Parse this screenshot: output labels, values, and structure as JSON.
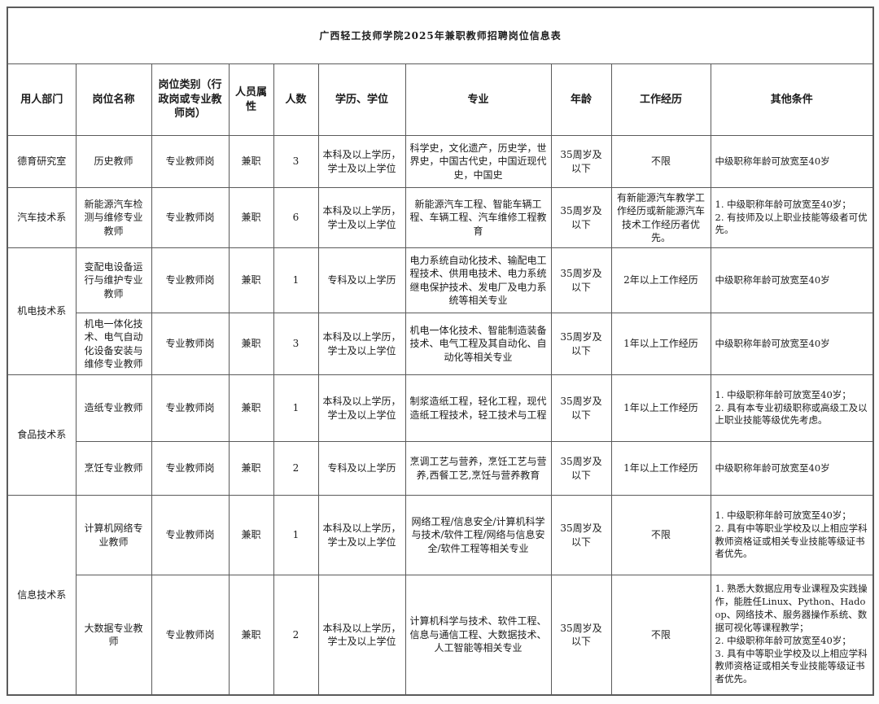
{
  "page": {
    "title": "广西轻工技师学院2025年兼职教师招聘岗位信息表"
  },
  "table": {
    "columns": [
      {
        "key": "department",
        "label": "用人部门"
      },
      {
        "key": "position",
        "label": "岗位名称"
      },
      {
        "key": "category",
        "label": "岗位类别（行政岗或专业教师岗）"
      },
      {
        "key": "attribute",
        "label": "人员属性"
      },
      {
        "key": "count",
        "label": "人数"
      },
      {
        "key": "education",
        "label": "学历、学位"
      },
      {
        "key": "major",
        "label": "专业"
      },
      {
        "key": "age",
        "label": "年龄"
      },
      {
        "key": "experience",
        "label": "工作经历"
      },
      {
        "key": "other",
        "label": "其他条件"
      }
    ],
    "rows": [
      {
        "department": "德育研究室",
        "department_rowspan": 1,
        "position": "历史教师",
        "category": "专业教师岗",
        "attribute": "兼职",
        "count": "3",
        "education": "本科及以上学历，学士及以上学位",
        "major": "科学史，文化遗产，历史学，世界史，中国古代史，中国近现代史，中国史",
        "age": "35周岁及以下",
        "experience": "不限",
        "other": "中级职称年龄可放宽至40岁"
      },
      {
        "department": "汽车技术系",
        "department_rowspan": 1,
        "position": "新能源汽车检测与维修专业教师",
        "category": "专业教师岗",
        "attribute": "兼职",
        "count": "6",
        "education": "本科及以上学历，学士及以上学位",
        "major": "新能源汽车工程、智能车辆工程、车辆工程、汽车维修工程教育",
        "age": "35周岁及以下",
        "experience": "有新能源汽车教学工作经历或新能源汽车技术工作经历者优先。",
        "other": "1. 中级职称年龄可放宽至40岁；\n2. 有技师及以上职业技能等级者可优先。"
      },
      {
        "department": "机电技术系",
        "department_rowspan": 2,
        "position": "变配电设备运行与维护专业教师",
        "category": "专业教师岗",
        "attribute": "兼职",
        "count": "1",
        "education": "专科及以上学历",
        "major": "电力系统自动化技术、输配电工程技术、供用电技术、电力系统继电保护技术、发电厂及电力系统等相关专业",
        "age": "35周岁及以下",
        "experience": "2年以上工作经历",
        "other": "中级职称年龄可放宽至40岁"
      },
      {
        "department": "",
        "department_rowspan": 0,
        "position": "机电一体化技术、电气自动化设备安装与维修专业教师",
        "category": "专业教师岗",
        "attribute": "兼职",
        "count": "3",
        "education": "本科及以上学历，学士及以上学位",
        "major": "机电一体化技术、智能制造装备技术、电气工程及其自动化、自动化等相关专业",
        "age": "35周岁及以下",
        "experience": "1年以上工作经历",
        "other": "中级职称年龄可放宽至40岁"
      },
      {
        "department": "食品技术系",
        "department_rowspan": 2,
        "position": "造纸专业教师",
        "category": "专业教师岗",
        "attribute": "兼职",
        "count": "1",
        "education": "本科及以上学历，学士及以上学位",
        "major": "制浆造纸工程，轻化工程，现代造纸工程技术，轻工技术与工程",
        "age": "35周岁及以下",
        "experience": "1年以上工作经历",
        "other": "1. 中级职称年龄可放宽至40岁；\n2. 具有本专业初级职称或高级工及以上职业技能等级优先考虑。"
      },
      {
        "department": "",
        "department_rowspan": 0,
        "position": "烹饪专业教师",
        "category": "专业教师岗",
        "attribute": "兼职",
        "count": "2",
        "education": "专科及以上学历",
        "major": "烹调工艺与营养，烹饪工艺与营养,西餐工艺,烹饪与营养教育",
        "age": "35周岁及以下",
        "experience": "1年以上工作经历",
        "other": "中级职称年龄可放宽至40岁"
      },
      {
        "department": "信息技术系",
        "department_rowspan": 2,
        "position": "计算机网络专业教师",
        "category": "专业教师岗",
        "attribute": "兼职",
        "count": "1",
        "education": "本科及以上学历，学士及以上学位",
        "major": "网络工程/信息安全/计算机科学与技术/软件工程/网络与信息安全/软件工程等相关专业",
        "age": "35周岁及以下",
        "experience": "不限",
        "other": "1. 中级职称年龄可放宽至40岁；\n2. 具有中等职业学校及以上相应学科教师资格证或相关专业技能等级证书者优先。"
      },
      {
        "department": "",
        "department_rowspan": 0,
        "position": "大数据专业教师",
        "category": "专业教师岗",
        "attribute": "兼职",
        "count": "2",
        "education": "本科及以上学历，学士及以上学位",
        "major": "计算机科学与技术、软件工程、信息与通信工程、大数据技术、人工智能等相关专业",
        "age": "35周岁及以下",
        "experience": "不限",
        "other": "1. 熟悉大数据应用专业课程及实践操作，能胜任Linux、Python、Hadoop、网络技术、服务器操作系统、数据可视化等课程教学；\n2. 中级职称年龄可放宽至40岁；\n3. 具有中等职业学校及以上相应学科教师资格证或相关专业技能等级证书者优先。"
      }
    ]
  }
}
